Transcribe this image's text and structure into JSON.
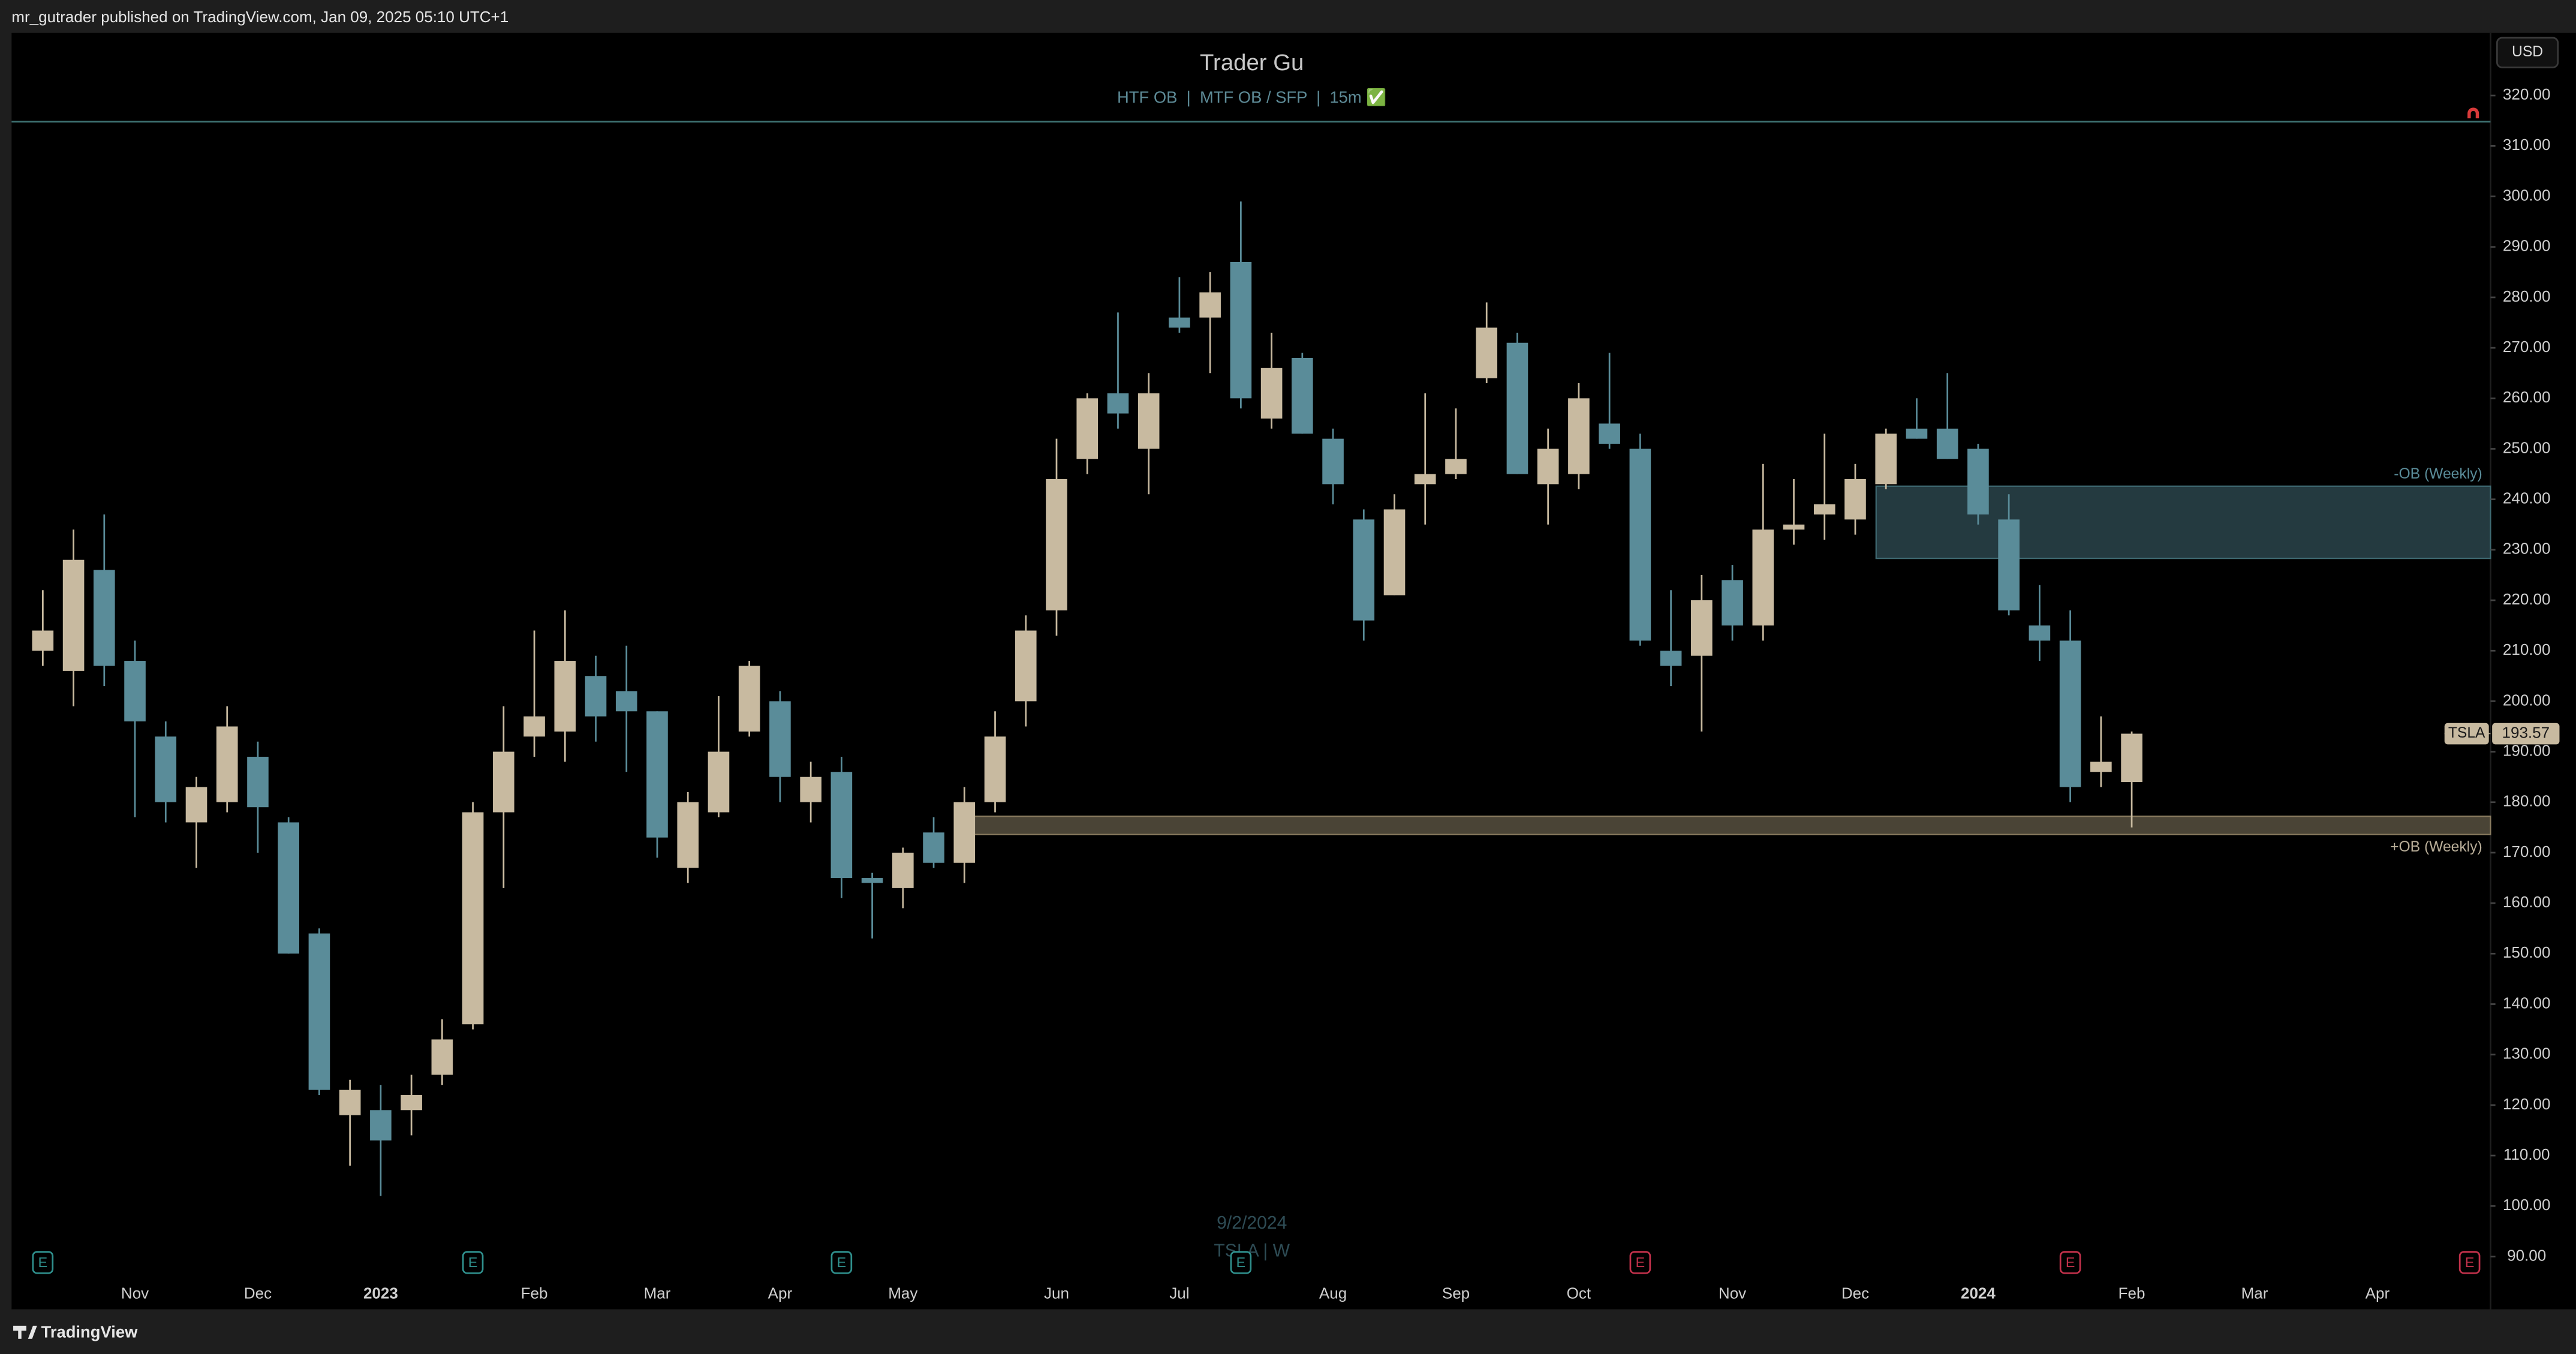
{
  "header": {
    "text": "mr_gutrader published on TradingView.com, Jan 09, 2025 05:10 UTC+1"
  },
  "footer": {
    "brand": "TradingView"
  },
  "chart_data": {
    "type": "candlestick",
    "title": "Trader Gu",
    "subtitle": "HTF OB  |  MTF OB / SFP  |  15m ✅",
    "currency": "USD",
    "symbol": "TSLA",
    "watermark": {
      "date": "9/2/2024",
      "symbol_interval": "TSLA | W"
    },
    "up_color": "#c8baa0",
    "down_color": "#5a8c99",
    "categories": [
      null,
      null,
      null,
      "Nov",
      null,
      null,
      null,
      "Dec",
      null,
      null,
      null,
      "2023",
      null,
      null,
      null,
      null,
      "Feb",
      null,
      null,
      null,
      "Mar",
      null,
      null,
      null,
      "Apr",
      null,
      null,
      null,
      "May",
      null,
      null,
      null,
      null,
      "Jun",
      null,
      null,
      null,
      "Jul",
      null,
      null,
      null,
      null,
      "Aug",
      null,
      null,
      null,
      "Sep",
      null,
      null,
      null,
      "Oct",
      null,
      null,
      null,
      null,
      "Nov",
      null,
      null,
      null,
      "Dec",
      null,
      null,
      null,
      "2024",
      null,
      null,
      null,
      null,
      "Feb",
      null,
      null,
      null,
      "Mar",
      null,
      null,
      null,
      "Apr",
      null,
      null,
      null
    ],
    "open": [
      210,
      206,
      226,
      208,
      193,
      176,
      180,
      189,
      176,
      154,
      118,
      119,
      119,
      126,
      136,
      178,
      193,
      194,
      205,
      202,
      198,
      167,
      178,
      194,
      200,
      180,
      186,
      165,
      163,
      174,
      168,
      180,
      200,
      218,
      248,
      261,
      250,
      276,
      276,
      287,
      256,
      268,
      252,
      236,
      221,
      243,
      245,
      264,
      271,
      243,
      245,
      255,
      250,
      210,
      209,
      224,
      215,
      234,
      237,
      236,
      243,
      254,
      254,
      250,
      236,
      215,
      212,
      186,
      184,
      null,
      null,
      null,
      null,
      null,
      null,
      null,
      null,
      null,
      null,
      null
    ],
    "high": [
      222,
      234,
      237,
      212,
      196,
      185,
      199,
      192,
      177,
      155,
      125,
      124,
      126,
      137,
      180,
      199,
      214,
      218,
      209,
      211,
      198,
      182,
      201,
      208,
      202,
      188,
      189,
      166,
      171,
      177,
      183,
      198,
      217,
      252,
      261,
      277,
      265,
      284,
      285,
      299,
      273,
      269,
      254,
      238,
      241,
      261,
      258,
      279,
      273,
      254,
      263,
      269,
      253,
      222,
      225,
      227,
      247,
      244,
      253,
      247,
      254,
      260,
      265,
      251,
      241,
      223,
      218,
      197,
      194,
      null,
      null,
      null,
      null,
      null,
      null,
      null,
      null,
      null,
      null,
      null
    ],
    "low": [
      207,
      199,
      203,
      177,
      176,
      167,
      178,
      170,
      150,
      122,
      108,
      102,
      114,
      124,
      135,
      163,
      189,
      188,
      192,
      186,
      169,
      164,
      177,
      193,
      180,
      176,
      161,
      153,
      159,
      167,
      164,
      178,
      195,
      213,
      245,
      254,
      241,
      273,
      265,
      258,
      254,
      253,
      239,
      212,
      221,
      235,
      244,
      263,
      245,
      235,
      242,
      250,
      211,
      203,
      194,
      212,
      212,
      231,
      232,
      233,
      242,
      252,
      248,
      235,
      217,
      208,
      180,
      183,
      175,
      null,
      null,
      null,
      null,
      null,
      null,
      null,
      null,
      null,
      null,
      null
    ],
    "close": [
      214,
      228,
      207,
      196,
      180,
      183,
      195,
      179,
      150,
      123,
      123,
      113,
      122,
      133,
      178,
      190,
      197,
      208,
      197,
      198,
      173,
      180,
      190,
      207,
      185,
      185,
      165,
      164,
      170,
      168,
      180,
      193,
      214,
      244,
      260,
      257,
      261,
      274,
      281,
      260,
      266,
      253,
      243,
      216,
      238,
      245,
      248,
      274,
      245,
      250,
      260,
      251,
      212,
      207,
      220,
      215,
      234,
      235,
      239,
      244,
      253,
      252,
      248,
      237,
      218,
      212,
      183,
      188,
      193.57,
      null,
      null,
      null,
      null,
      null,
      null,
      null,
      null,
      null,
      null,
      null
    ],
    "last_price": 193.57,
    "ylim": [
      86.7,
      332.4
    ],
    "yticks": [
      {
        "value": 90,
        "label": "90.00"
      },
      {
        "value": 100,
        "label": "100.00"
      },
      {
        "value": 110,
        "label": "110.00"
      },
      {
        "value": 120,
        "label": "120.00"
      },
      {
        "value": 130,
        "label": "130.00"
      },
      {
        "value": 140,
        "label": "140.00"
      },
      {
        "value": 150,
        "label": "150.00"
      },
      {
        "value": 160,
        "label": "160.00"
      },
      {
        "value": 170,
        "label": "170.00"
      },
      {
        "value": 180,
        "label": "180.00"
      },
      {
        "value": 190,
        "label": "190.00"
      },
      {
        "value": 200,
        "label": "200.00"
      },
      {
        "value": 210,
        "label": "210.00"
      },
      {
        "value": 220,
        "label": "220.00"
      },
      {
        "value": 230,
        "label": "230.00"
      },
      {
        "value": 240,
        "label": "240.00"
      },
      {
        "value": 250,
        "label": "250.00"
      },
      {
        "value": 260,
        "label": "260.00"
      },
      {
        "value": 270,
        "label": "270.00"
      },
      {
        "value": 280,
        "label": "280.00"
      },
      {
        "value": 290,
        "label": "290.00"
      },
      {
        "value": 300,
        "label": "300.00"
      },
      {
        "value": 310,
        "label": "310.00"
      },
      {
        "value": 320,
        "label": "320.00"
      }
    ],
    "grid": false,
    "hline": {
      "value": 314.8,
      "color": "#3c6e6e"
    },
    "zones": [
      {
        "label": "-OB (Weekly)",
        "top": 242.6,
        "bottom": 228.3,
        "start": 60,
        "fill": "#243a40",
        "stroke": "#3f6a72",
        "text_color": "#5a8c99"
      },
      {
        "label": "+OB (Weekly)",
        "top": 177.2,
        "bottom": 173.6,
        "start": 30,
        "fill": "#4a4436",
        "stroke": "#8a7c60",
        "text_color": "#b8ad98"
      }
    ],
    "events": [
      {
        "label": "E",
        "index": 0,
        "color": "#2f8f8c"
      },
      {
        "label": "E",
        "index": 14,
        "color": "#2f8f8c"
      },
      {
        "label": "E",
        "index": 26,
        "color": "#2f8f8c"
      },
      {
        "label": "E",
        "index": 39,
        "color": "#2f8f8c"
      },
      {
        "label": "E",
        "index": 52,
        "color": "#c2314b"
      },
      {
        "label": "E",
        "index": 66,
        "color": "#c2314b"
      },
      {
        "label": "E",
        "index": 79,
        "color": "#c2314b"
      }
    ]
  }
}
